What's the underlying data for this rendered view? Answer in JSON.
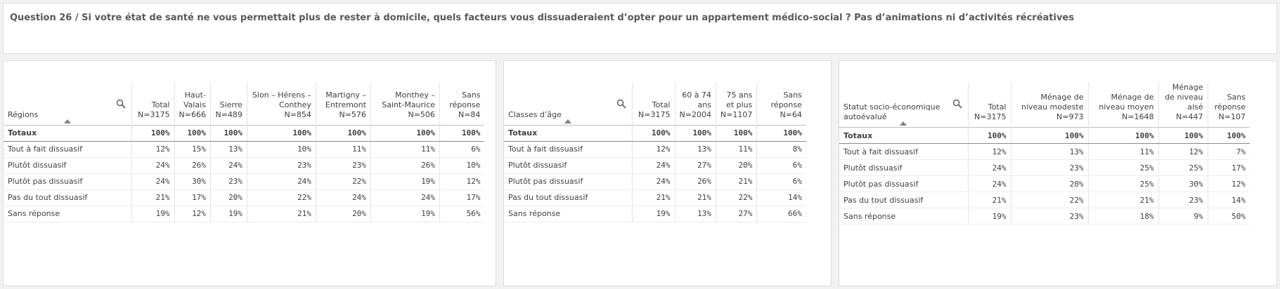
{
  "title": "Question 26 / Si votre état de santé ne vous permettait plus de rester à domicile, quels facteurs vous dissuaderaient d’opter pour un appartement médico-social ? Pas d’animations ni d’activités récréatives",
  "tables": [
    {
      "id": "regions",
      "dimension_label": "Régions",
      "columns": [
        "Total N=3175",
        "Haut-Valais N=666",
        "Sierre N=489",
        "Sion – Hérens – Conthey N=854",
        "Martigny – Entremont N=576",
        "Monthey – Saint-Maurice N=506",
        "Sans réponse N=84"
      ],
      "totals": {
        "label": "Totaux",
        "values": [
          "100%",
          "100%",
          "100%",
          "100%",
          "100%",
          "100%",
          "100%"
        ]
      },
      "rows": [
        {
          "label": "Tout à fait dissuasif",
          "values": [
            "12%",
            "15%",
            "13%",
            "10%",
            "11%",
            "11%",
            "6%"
          ]
        },
        {
          "label": "Plutôt dissuasif",
          "values": [
            "24%",
            "26%",
            "24%",
            "23%",
            "23%",
            "26%",
            "10%"
          ]
        },
        {
          "label": "Plutôt pas dissuasif",
          "values": [
            "24%",
            "30%",
            "23%",
            "24%",
            "22%",
            "19%",
            "12%"
          ]
        },
        {
          "label": "Pas du tout dissuasif",
          "values": [
            "21%",
            "17%",
            "20%",
            "22%",
            "24%",
            "24%",
            "17%"
          ]
        },
        {
          "label": "Sans réponse",
          "values": [
            "19%",
            "12%",
            "19%",
            "21%",
            "20%",
            "19%",
            "56%"
          ]
        }
      ]
    },
    {
      "id": "ages",
      "dimension_label": "Classes d’âge",
      "columns": [
        "Total N=3175",
        "60 à 74 ans N=2004",
        "75 ans et plus N=1107",
        "Sans réponse N=64"
      ],
      "totals": {
        "label": "Totaux",
        "values": [
          "100%",
          "100%",
          "100%",
          "100%"
        ]
      },
      "rows": [
        {
          "label": "Tout à fait dissuasif",
          "values": [
            "12%",
            "13%",
            "11%",
            "8%"
          ]
        },
        {
          "label": "Plutôt dissuasif",
          "values": [
            "24%",
            "27%",
            "20%",
            "6%"
          ]
        },
        {
          "label": "Plutôt pas dissuasif",
          "values": [
            "24%",
            "26%",
            "21%",
            "6%"
          ]
        },
        {
          "label": "Pas du tout dissuasif",
          "values": [
            "21%",
            "21%",
            "22%",
            "14%"
          ]
        },
        {
          "label": "Sans réponse",
          "values": [
            "19%",
            "13%",
            "27%",
            "66%"
          ]
        }
      ]
    },
    {
      "id": "statut",
      "dimension_label": "Statut socio-économique autoévalué",
      "columns": [
        "Total N=3175",
        "Ménage de niveau modeste N=973",
        "Ménage de niveau moyen N=1648",
        "Ménage de niveau aisé N=447",
        "Sans réponse N=107"
      ],
      "totals": {
        "label": "Totaux",
        "values": [
          "100%",
          "100%",
          "100%",
          "100%",
          "100%"
        ]
      },
      "rows": [
        {
          "label": "Tout à fait dissuasif",
          "values": [
            "12%",
            "13%",
            "11%",
            "12%",
            "7%"
          ]
        },
        {
          "label": "Plutôt dissuasif",
          "values": [
            "24%",
            "23%",
            "25%",
            "25%",
            "17%"
          ]
        },
        {
          "label": "Plutôt pas dissuasif",
          "values": [
            "24%",
            "20%",
            "25%",
            "30%",
            "12%"
          ]
        },
        {
          "label": "Pas du tout dissuasif",
          "values": [
            "21%",
            "22%",
            "21%",
            "23%",
            "14%"
          ]
        },
        {
          "label": "Sans réponse",
          "values": [
            "19%",
            "23%",
            "18%",
            "9%",
            "50%"
          ]
        }
      ]
    }
  ]
}
